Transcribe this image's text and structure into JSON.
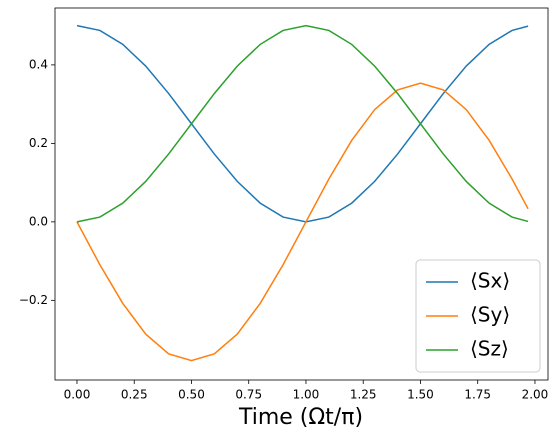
{
  "chart_data": {
    "type": "line",
    "xlabel": "Time (Ωt/π)",
    "x": [
      0,
      0.1,
      0.2,
      0.3,
      0.4,
      0.5,
      0.6,
      0.7,
      0.8,
      0.9,
      1.0,
      1.1,
      1.2,
      1.3,
      1.4,
      1.5,
      1.6,
      1.7,
      1.8,
      1.9,
      1.97
    ],
    "series": [
      {
        "name": "⟨Sx⟩",
        "color": "#1f77b4",
        "values": [
          0.5,
          0.4878,
          0.4523,
          0.397,
          0.3273,
          0.25,
          0.1728,
          0.1031,
          0.0478,
          0.0122,
          0,
          0.0122,
          0.0478,
          0.1031,
          0.1728,
          0.25,
          0.3273,
          0.397,
          0.4523,
          0.4878,
          0.4989
        ]
      },
      {
        "name": "⟨Sy⟩",
        "color": "#ff7f0e",
        "values": [
          0,
          -0.1093,
          -0.2078,
          -0.2861,
          -0.3363,
          -0.3536,
          -0.3363,
          -0.2861,
          -0.2078,
          -0.1093,
          0,
          0.1093,
          0.2078,
          0.2861,
          0.3363,
          0.3536,
          0.3363,
          0.2861,
          0.2078,
          0.1093,
          0.0333
        ]
      },
      {
        "name": "⟨Sz⟩",
        "color": "#2ca02c",
        "values": [
          0,
          0.0122,
          0.0477,
          0.103,
          0.1727,
          0.25,
          0.3272,
          0.3969,
          0.4522,
          0.4878,
          0.5,
          0.4878,
          0.4522,
          0.3969,
          0.3272,
          0.25,
          0.1727,
          0.103,
          0.0477,
          0.0122,
          0.0011
        ]
      }
    ],
    "xlim": [
      -0.096,
      2.057
    ],
    "ylim": [
      -0.403,
      0.545
    ],
    "xticks": [
      {
        "value": 0,
        "label": "0.00"
      },
      {
        "value": 0.25,
        "label": "0.25"
      },
      {
        "value": 0.5,
        "label": "0.50"
      },
      {
        "value": 0.75,
        "label": "0.75"
      },
      {
        "value": 1.0,
        "label": "1.00"
      },
      {
        "value": 1.25,
        "label": "1.25"
      },
      {
        "value": 1.5,
        "label": "1.50"
      },
      {
        "value": 1.75,
        "label": "1.75"
      },
      {
        "value": 2.0,
        "label": "2.00"
      }
    ],
    "yticks": [
      {
        "value": -0.2,
        "label": "−0.2"
      },
      {
        "value": 0,
        "label": "0.0"
      },
      {
        "value": 0.2,
        "label": "0.2"
      },
      {
        "value": 0.4,
        "label": "0.4"
      }
    ],
    "legend": "lower right"
  }
}
